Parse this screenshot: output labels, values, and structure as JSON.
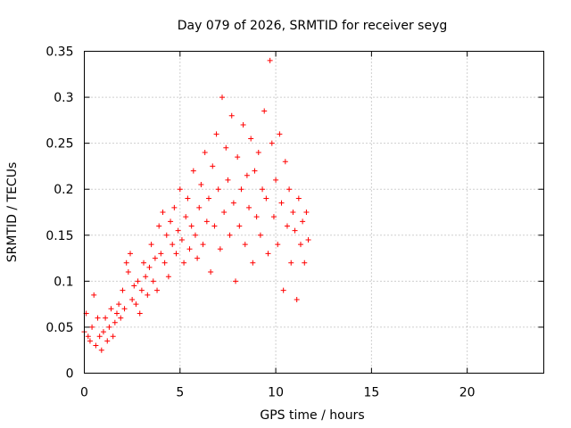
{
  "chart_data": {
    "type": "scatter",
    "title": "Day 079 of 2026, SRMTID for receiver seyg",
    "xlabel": "GPS time / hours",
    "ylabel": "SRMTID / TECUs",
    "xlim": [
      0,
      24
    ],
    "ylim": [
      0,
      0.35
    ],
    "xticks": [
      0,
      5,
      10,
      15,
      20
    ],
    "xtick_labels": [
      "0",
      "5",
      "10",
      "15",
      "20"
    ],
    "yticks": [
      0,
      0.05,
      0.1,
      0.15,
      0.2,
      0.25,
      0.3,
      0.35
    ],
    "ytick_labels": [
      "0",
      "0.05",
      "0.1",
      "0.15",
      "0.2",
      "0.25",
      "0.3",
      "0.35"
    ],
    "grid": true,
    "marker": "+",
    "color": "#ff0000",
    "series": [
      {
        "name": "SRMTID",
        "x": [
          0.0,
          0.1,
          0.2,
          0.3,
          0.4,
          0.5,
          0.6,
          0.7,
          0.8,
          0.9,
          1.0,
          1.1,
          1.2,
          1.3,
          1.4,
          1.5,
          1.6,
          1.7,
          1.8,
          1.9,
          2.0,
          2.1,
          2.2,
          2.3,
          2.4,
          2.5,
          2.6,
          2.7,
          2.8,
          2.9,
          3.0,
          3.1,
          3.2,
          3.3,
          3.4,
          3.5,
          3.6,
          3.7,
          3.8,
          3.9,
          4.0,
          4.1,
          4.2,
          4.3,
          4.4,
          4.5,
          4.6,
          4.7,
          4.8,
          4.9,
          5.0,
          5.1,
          5.2,
          5.3,
          5.4,
          5.5,
          5.6,
          5.7,
          5.8,
          5.9,
          6.0,
          6.1,
          6.2,
          6.3,
          6.4,
          6.5,
          6.6,
          6.7,
          6.8,
          6.9,
          7.0,
          7.1,
          7.2,
          7.3,
          7.4,
          7.5,
          7.6,
          7.7,
          7.8,
          7.9,
          8.0,
          8.1,
          8.2,
          8.3,
          8.4,
          8.5,
          8.6,
          8.7,
          8.8,
          8.9,
          9.0,
          9.1,
          9.2,
          9.3,
          9.4,
          9.5,
          9.6,
          9.7,
          9.8,
          9.9,
          10.0,
          10.1,
          10.2,
          10.3,
          10.4,
          10.5,
          10.6,
          10.7,
          10.8,
          10.9,
          11.0,
          11.1,
          11.2,
          11.3,
          11.4,
          11.5,
          11.6,
          11.7
        ],
        "y": [
          0.045,
          0.065,
          0.04,
          0.035,
          0.05,
          0.085,
          0.03,
          0.06,
          0.04,
          0.025,
          0.045,
          0.06,
          0.035,
          0.05,
          0.07,
          0.04,
          0.055,
          0.065,
          0.075,
          0.06,
          0.09,
          0.07,
          0.12,
          0.11,
          0.13,
          0.08,
          0.095,
          0.075,
          0.1,
          0.065,
          0.09,
          0.12,
          0.105,
          0.085,
          0.115,
          0.14,
          0.1,
          0.125,
          0.09,
          0.16,
          0.13,
          0.175,
          0.12,
          0.15,
          0.105,
          0.165,
          0.14,
          0.18,
          0.13,
          0.155,
          0.2,
          0.145,
          0.12,
          0.17,
          0.19,
          0.135,
          0.16,
          0.22,
          0.15,
          0.125,
          0.18,
          0.205,
          0.14,
          0.24,
          0.165,
          0.19,
          0.11,
          0.225,
          0.16,
          0.26,
          0.2,
          0.135,
          0.3,
          0.175,
          0.245,
          0.21,
          0.15,
          0.28,
          0.185,
          0.1,
          0.235,
          0.16,
          0.2,
          0.27,
          0.14,
          0.215,
          0.18,
          0.255,
          0.12,
          0.22,
          0.17,
          0.24,
          0.15,
          0.2,
          0.285,
          0.19,
          0.13,
          0.34,
          0.25,
          0.17,
          0.21,
          0.14,
          0.26,
          0.185,
          0.09,
          0.23,
          0.16,
          0.2,
          0.12,
          0.175,
          0.155,
          0.08,
          0.19,
          0.14,
          0.165,
          0.12,
          0.175,
          0.145
        ]
      }
    ]
  }
}
